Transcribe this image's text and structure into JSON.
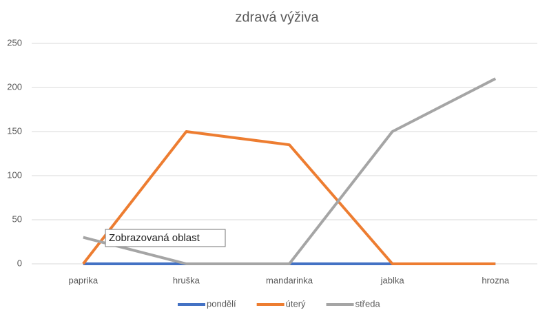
{
  "chart_data": {
    "type": "line",
    "title": "zdravá výživa",
    "categories": [
      "paprika",
      "hruška",
      "mandarinka",
      "jablka",
      "hrozna"
    ],
    "series": [
      {
        "name": "pondělí",
        "color": "#4472c4",
        "values": [
          0,
          0,
          0,
          0,
          0
        ]
      },
      {
        "name": "úterý",
        "color": "#ed7d31",
        "values": [
          0,
          150,
          135,
          0,
          0
        ]
      },
      {
        "name": "středa",
        "color": "#a5a5a5",
        "values": [
          30,
          0,
          0,
          150,
          210
        ]
      }
    ],
    "ylim": [
      0,
      250
    ],
    "yticks": [
      0,
      50,
      100,
      150,
      200,
      250
    ],
    "grid": true,
    "legend": "bottom",
    "tooltip": "Zobrazovaná oblast"
  }
}
